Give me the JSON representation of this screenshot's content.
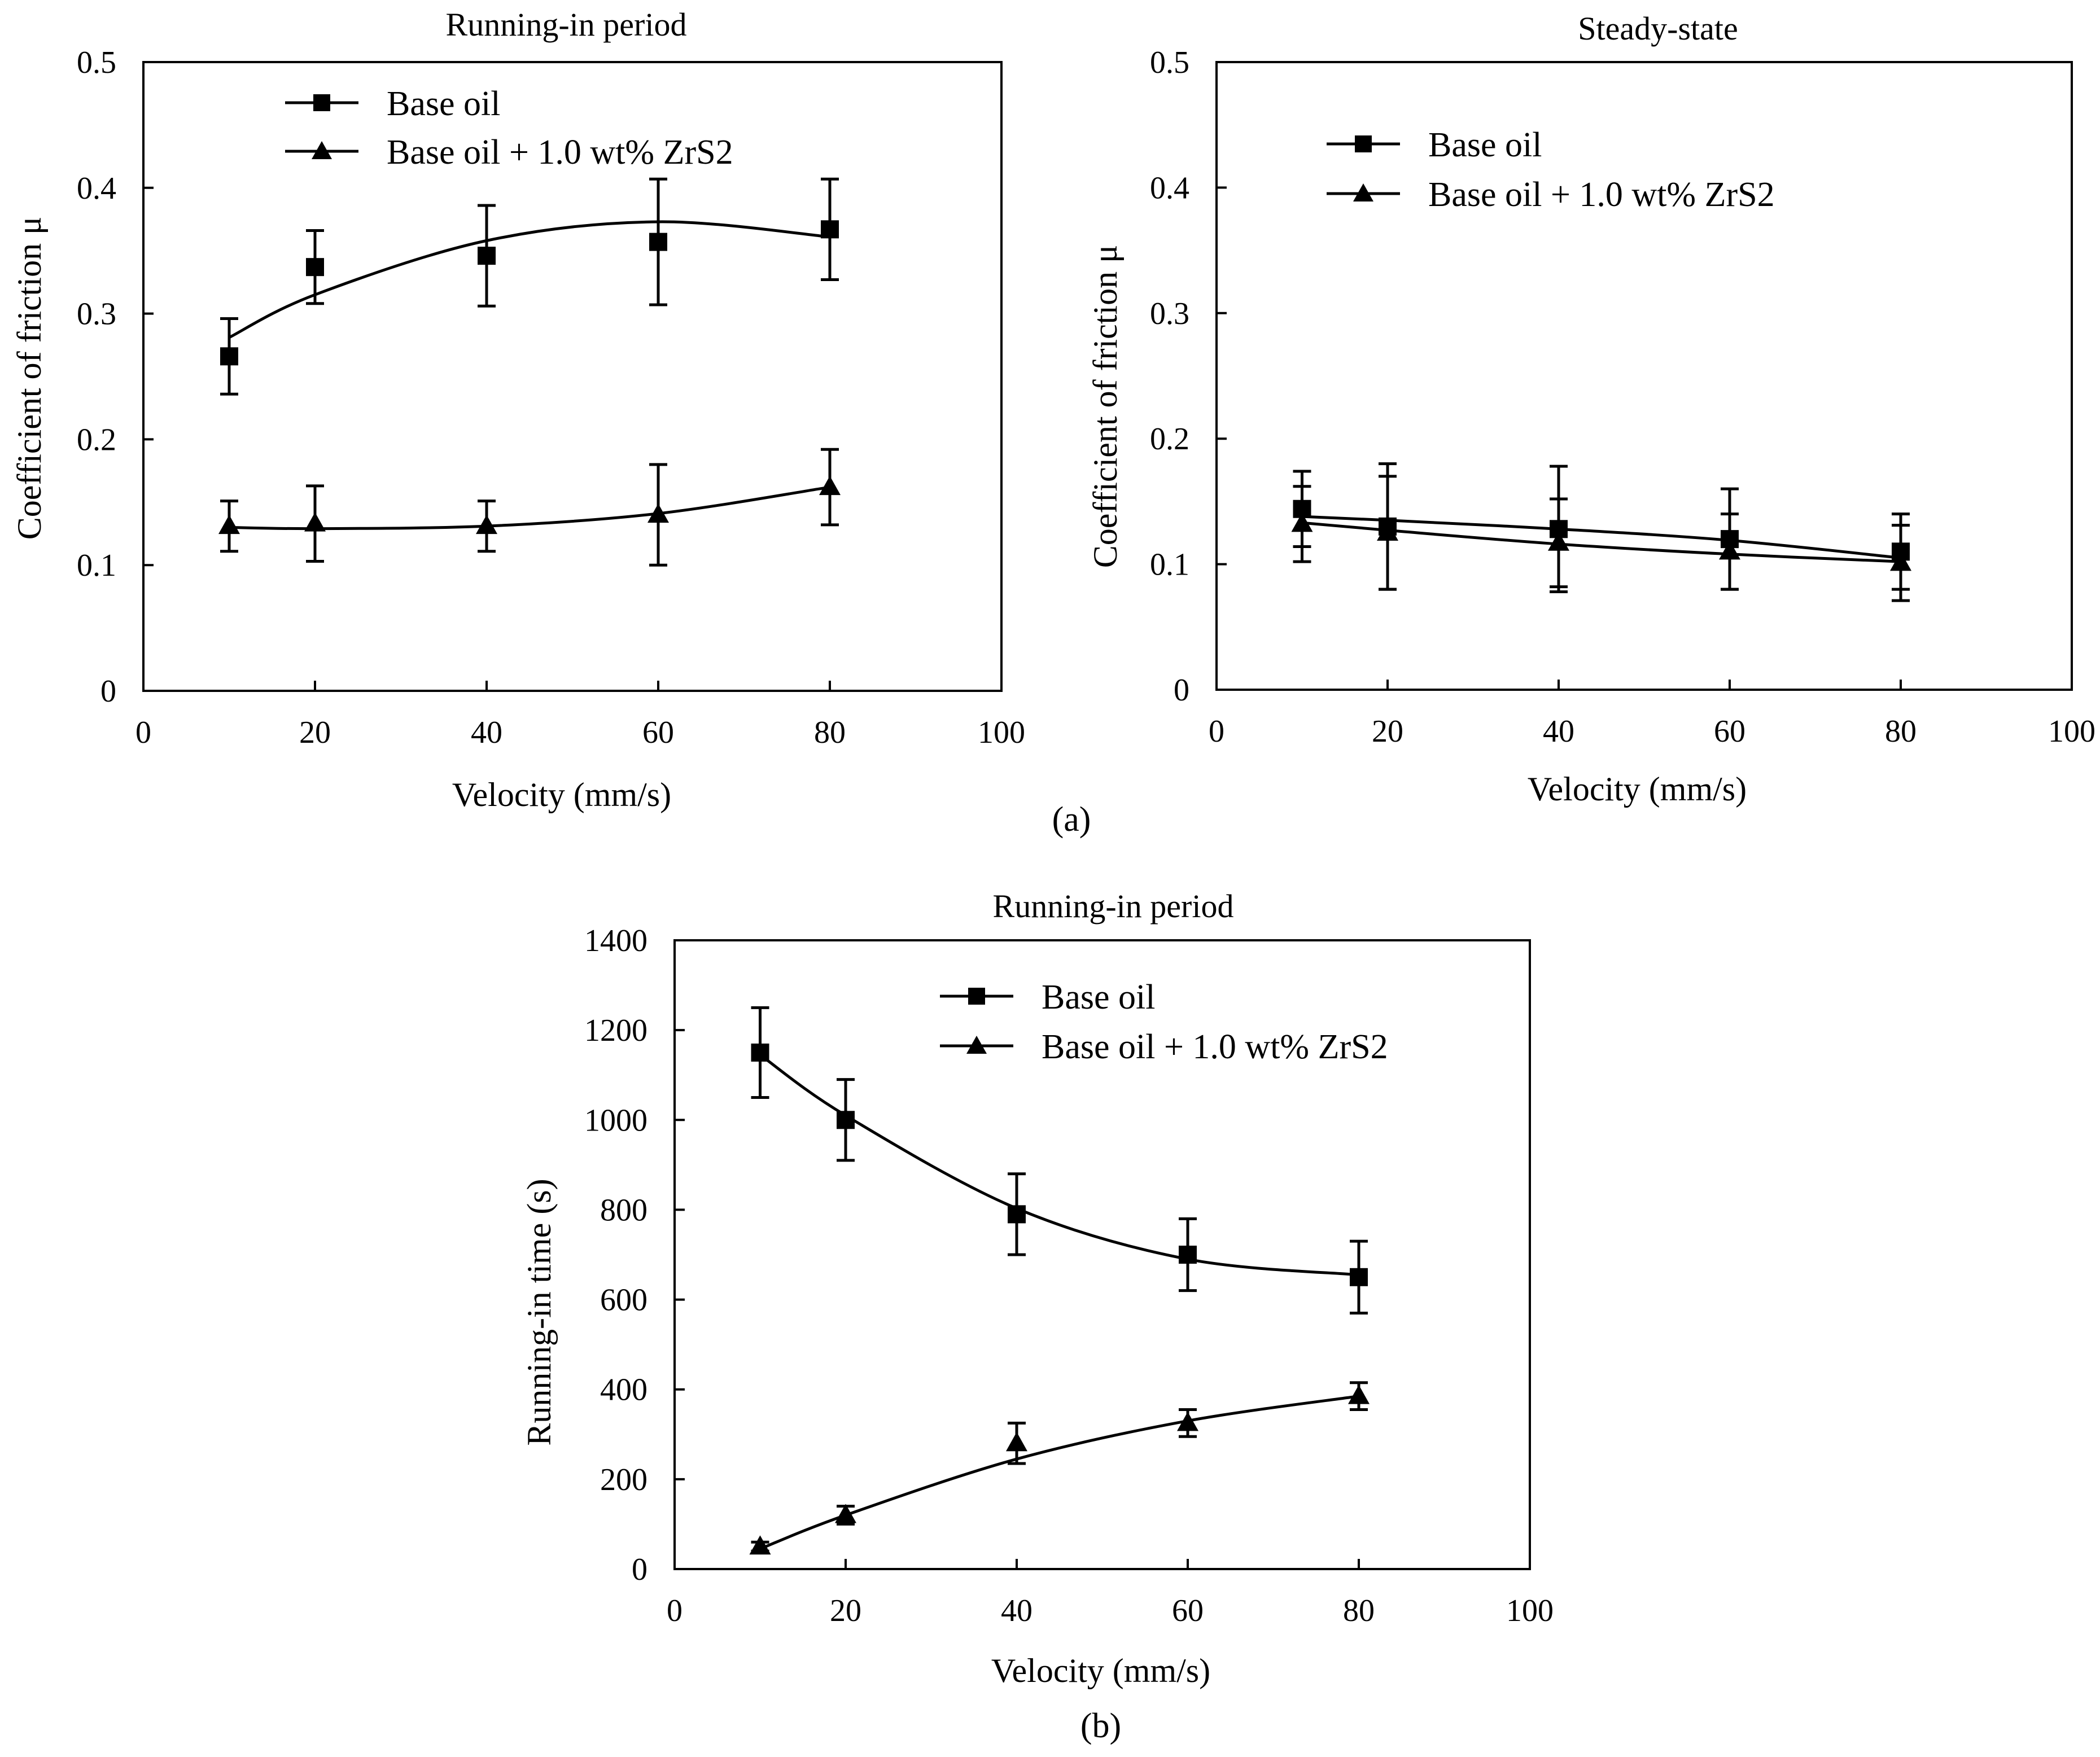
{
  "figure": {
    "caption_a": "(a)",
    "caption_b": "(b)"
  },
  "chart_data": [
    {
      "type": "line",
      "title": "Running-in period",
      "xlabel": "Velocity (mm/s)",
      "ylabel": "Coefficient of friction μ",
      "xlim": [
        0,
        100
      ],
      "ylim": [
        0,
        0.5
      ],
      "x_ticks": [
        "0",
        "20",
        "40",
        "60",
        "80",
        "100"
      ],
      "y_ticks": [
        "0",
        "0.1",
        "0.2",
        "0.3",
        "0.4",
        "0.5"
      ],
      "legend": "top-left",
      "grid": false,
      "x": [
        10,
        20,
        40,
        60,
        80
      ],
      "series": [
        {
          "name": "Base oil",
          "marker": "square",
          "values": [
            0.266,
            0.337,
            0.346,
            0.357,
            0.367
          ],
          "errors": [
            0.03,
            0.029,
            0.04,
            0.05,
            0.04
          ],
          "fit": [
            0.281,
            0.315,
            0.358,
            0.373,
            0.361
          ]
        },
        {
          "name": "Base oil + 1.0 wt% ZrS2",
          "marker": "triangle",
          "values": [
            0.131,
            0.133,
            0.131,
            0.14,
            0.162
          ],
          "errors": [
            0.02,
            0.03,
            0.02,
            0.04,
            0.03
          ],
          "fit": [
            0.13,
            0.129,
            0.131,
            0.141,
            0.162
          ]
        }
      ]
    },
    {
      "type": "line",
      "title": "Steady-state",
      "xlabel": "Velocity (mm/s)",
      "ylabel": "Coefficient of friction μ",
      "xlim": [
        0,
        100
      ],
      "ylim": [
        0,
        0.5
      ],
      "x_ticks": [
        "0",
        "20",
        "40",
        "60",
        "80",
        "100"
      ],
      "y_ticks": [
        "0",
        "0.1",
        "0.2",
        "0.3",
        "0.4",
        "0.5"
      ],
      "legend": "top-left",
      "grid": false,
      "x": [
        10,
        20,
        40,
        60,
        80
      ],
      "series": [
        {
          "name": "Base oil",
          "marker": "square",
          "values": [
            0.144,
            0.13,
            0.128,
            0.12,
            0.11
          ],
          "errors": [
            0.03,
            0.05,
            0.05,
            0.04,
            0.03
          ],
          "fit": [
            0.138,
            0.135,
            0.128,
            0.119,
            0.105
          ]
        },
        {
          "name": "Base oil + 1.0 wt% ZrS2",
          "marker": "triangle",
          "values": [
            0.132,
            0.125,
            0.117,
            0.11,
            0.101
          ],
          "errors": [
            0.03,
            0.045,
            0.035,
            0.03,
            0.03
          ],
          "fit": [
            0.133,
            0.127,
            0.116,
            0.108,
            0.102
          ]
        }
      ]
    },
    {
      "type": "line",
      "title": "Running-in period",
      "xlabel": "Velocity (mm/s)",
      "ylabel": "Running-in time (s)",
      "xlim": [
        0,
        100
      ],
      "ylim": [
        0,
        1400
      ],
      "x_ticks": [
        "0",
        "20",
        "40",
        "60",
        "80",
        "100"
      ],
      "y_ticks": [
        "0",
        "200",
        "400",
        "600",
        "800",
        "1000",
        "1200",
        "1400"
      ],
      "legend": "top-center",
      "grid": false,
      "x": [
        10,
        20,
        40,
        60,
        80
      ],
      "series": [
        {
          "name": "Base oil",
          "marker": "square",
          "values": [
            1150,
            1000,
            790,
            700,
            650
          ],
          "errors": [
            100,
            90,
            90,
            80,
            80
          ],
          "fit": [
            1145,
            1010,
            803,
            690,
            655
          ]
        },
        {
          "name": "Base oil + 1.0 wt% ZrS2",
          "marker": "triangle",
          "values": [
            50,
            120,
            280,
            325,
            385
          ],
          "errors": [
            10,
            20,
            45,
            30,
            30
          ],
          "fit": [
            45,
            120,
            245,
            330,
            385
          ]
        }
      ]
    }
  ]
}
